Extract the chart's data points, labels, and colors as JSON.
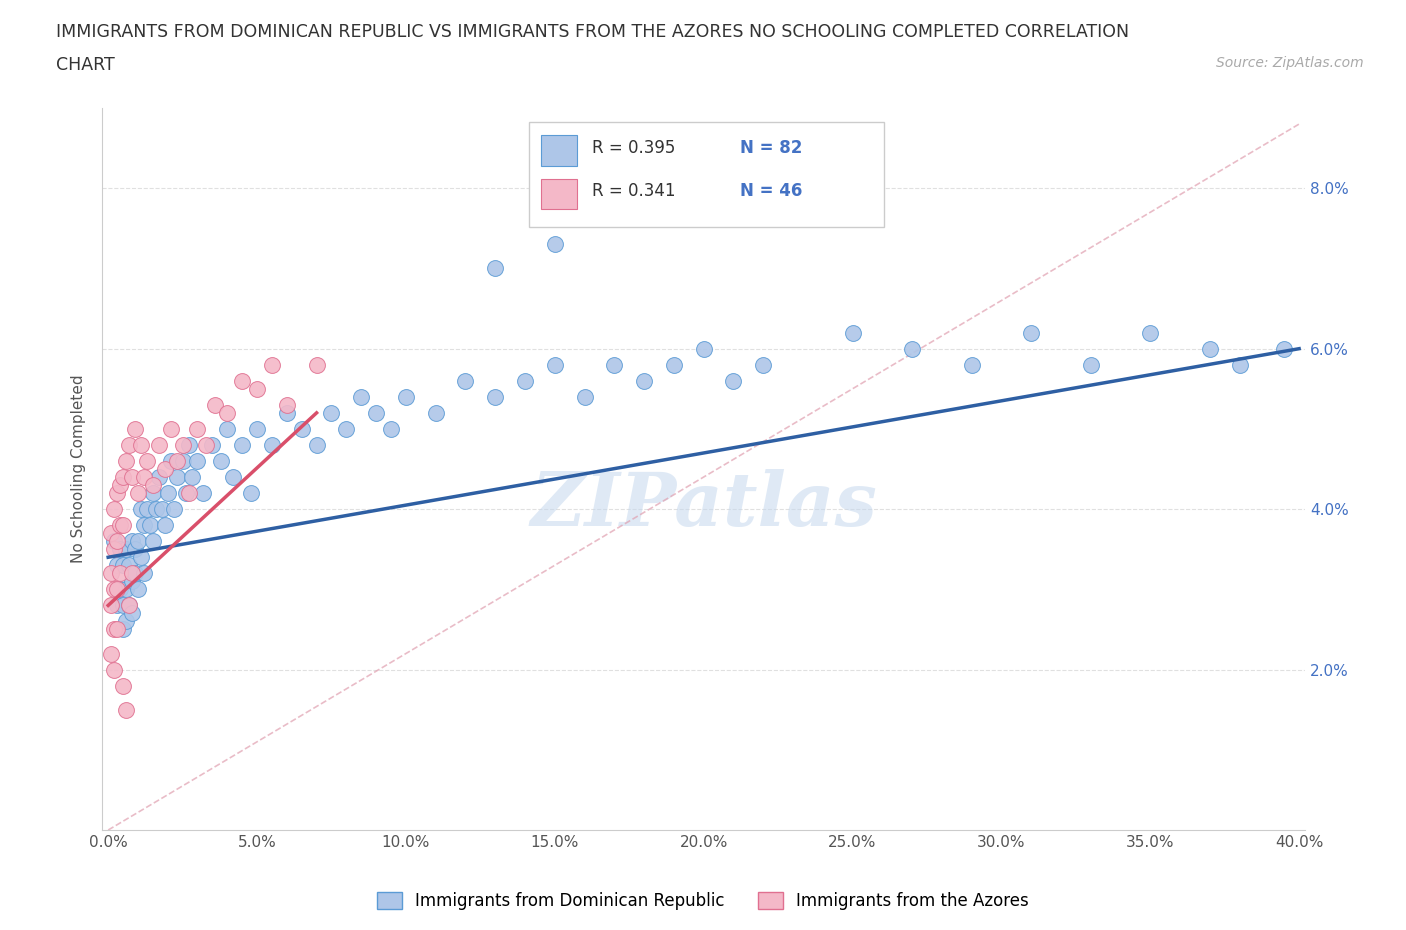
{
  "title_line1": "IMMIGRANTS FROM DOMINICAN REPUBLIC VS IMMIGRANTS FROM THE AZORES NO SCHOOLING COMPLETED CORRELATION",
  "title_line2": "CHART",
  "source": "Source: ZipAtlas.com",
  "ylabel": "No Schooling Completed",
  "xaxis_range": [
    0.0,
    0.4
  ],
  "yaxis_range": [
    0.0,
    0.088
  ],
  "legend_r1": "R = 0.395",
  "legend_n1": "N = 82",
  "legend_r2": "R = 0.341",
  "legend_n2": "N = 46",
  "color_blue": "#aec6e8",
  "color_pink": "#f4b8c8",
  "color_blue_edge": "#5b9bd5",
  "color_pink_edge": "#e07090",
  "color_line_blue": "#2e5fa3",
  "color_line_pink": "#d94f6a",
  "color_trendline_gray": "#cccccc",
  "background_color": "#ffffff",
  "grid_color": "#e0e0e0",
  "watermark_text": "ZIPatlas",
  "watermark_color": "#c5d8ee",
  "blue_x": [
    0.002,
    0.003,
    0.003,
    0.004,
    0.004,
    0.005,
    0.005,
    0.005,
    0.006,
    0.006,
    0.006,
    0.007,
    0.007,
    0.008,
    0.008,
    0.008,
    0.009,
    0.009,
    0.01,
    0.01,
    0.011,
    0.011,
    0.012,
    0.012,
    0.013,
    0.014,
    0.015,
    0.015,
    0.016,
    0.017,
    0.018,
    0.019,
    0.02,
    0.021,
    0.022,
    0.023,
    0.025,
    0.026,
    0.027,
    0.028,
    0.03,
    0.032,
    0.035,
    0.038,
    0.04,
    0.042,
    0.045,
    0.048,
    0.05,
    0.055,
    0.06,
    0.065,
    0.07,
    0.075,
    0.08,
    0.085,
    0.09,
    0.095,
    0.1,
    0.11,
    0.12,
    0.13,
    0.14,
    0.15,
    0.16,
    0.17,
    0.18,
    0.19,
    0.2,
    0.21,
    0.22,
    0.25,
    0.27,
    0.29,
    0.31,
    0.33,
    0.35,
    0.37,
    0.38,
    0.395,
    0.13,
    0.15
  ],
  "blue_y": [
    0.036,
    0.033,
    0.028,
    0.035,
    0.03,
    0.033,
    0.028,
    0.025,
    0.035,
    0.03,
    0.026,
    0.033,
    0.028,
    0.036,
    0.031,
    0.027,
    0.035,
    0.032,
    0.036,
    0.03,
    0.04,
    0.034,
    0.038,
    0.032,
    0.04,
    0.038,
    0.042,
    0.036,
    0.04,
    0.044,
    0.04,
    0.038,
    0.042,
    0.046,
    0.04,
    0.044,
    0.046,
    0.042,
    0.048,
    0.044,
    0.046,
    0.042,
    0.048,
    0.046,
    0.05,
    0.044,
    0.048,
    0.042,
    0.05,
    0.048,
    0.052,
    0.05,
    0.048,
    0.052,
    0.05,
    0.054,
    0.052,
    0.05,
    0.054,
    0.052,
    0.056,
    0.054,
    0.056,
    0.058,
    0.054,
    0.058,
    0.056,
    0.058,
    0.06,
    0.056,
    0.058,
    0.062,
    0.06,
    0.058,
    0.062,
    0.058,
    0.062,
    0.06,
    0.058,
    0.06,
    0.07,
    0.073
  ],
  "pink_x": [
    0.001,
    0.001,
    0.001,
    0.001,
    0.002,
    0.002,
    0.002,
    0.002,
    0.002,
    0.003,
    0.003,
    0.003,
    0.003,
    0.004,
    0.004,
    0.004,
    0.005,
    0.005,
    0.005,
    0.006,
    0.006,
    0.007,
    0.007,
    0.008,
    0.008,
    0.009,
    0.01,
    0.011,
    0.012,
    0.013,
    0.015,
    0.017,
    0.019,
    0.021,
    0.023,
    0.025,
    0.027,
    0.03,
    0.033,
    0.036,
    0.04,
    0.045,
    0.05,
    0.055,
    0.06,
    0.07
  ],
  "pink_y": [
    0.037,
    0.032,
    0.028,
    0.022,
    0.04,
    0.035,
    0.03,
    0.025,
    0.02,
    0.042,
    0.036,
    0.03,
    0.025,
    0.043,
    0.038,
    0.032,
    0.044,
    0.038,
    0.018,
    0.046,
    0.015,
    0.048,
    0.028,
    0.044,
    0.032,
    0.05,
    0.042,
    0.048,
    0.044,
    0.046,
    0.043,
    0.048,
    0.045,
    0.05,
    0.046,
    0.048,
    0.042,
    0.05,
    0.048,
    0.053,
    0.052,
    0.056,
    0.055,
    0.058,
    0.053,
    0.058
  ]
}
